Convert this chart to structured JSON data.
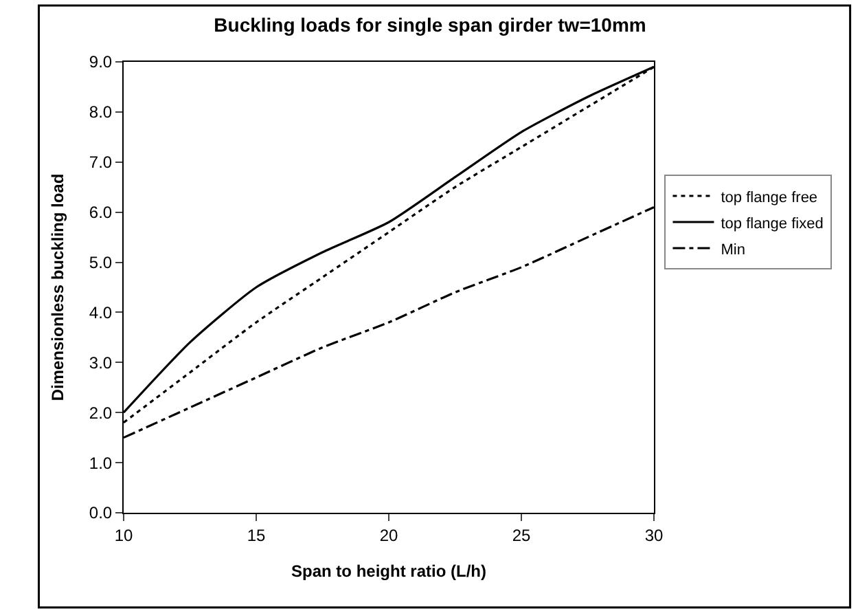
{
  "chart_data": {
    "type": "line",
    "title": "Buckling loads for single span girder tw=10mm",
    "xlabel": "Span to height ratio (L/h)",
    "ylabel": "Dimensionless buckling load",
    "x": [
      10,
      12.5,
      15,
      17.5,
      20,
      22.5,
      25,
      27.5,
      30
    ],
    "series": [
      {
        "name": "top flange free",
        "color": "#000000",
        "line_style": "dotted",
        "values": [
          1.8,
          2.8,
          3.8,
          4.7,
          5.6,
          6.5,
          7.3,
          8.1,
          8.9
        ]
      },
      {
        "name": "top flange fixed",
        "color": "#000000",
        "line_style": "solid",
        "values": [
          2.0,
          3.4,
          4.5,
          5.2,
          5.8,
          6.7,
          7.6,
          8.3,
          8.9
        ]
      },
      {
        "name": "Min",
        "color": "#000000",
        "line_style": "dashdot",
        "values": [
          1.5,
          2.1,
          2.7,
          3.3,
          3.8,
          4.4,
          4.9,
          5.5,
          6.1
        ]
      }
    ],
    "xlim": [
      10,
      30
    ],
    "xticks": [
      10,
      15,
      20,
      25,
      30
    ],
    "ylim": [
      0,
      9
    ],
    "yticks": [
      {
        "value": 0,
        "label": "0.0"
      },
      {
        "value": 1,
        "label": "1.0"
      },
      {
        "value": 2,
        "label": "2.0"
      },
      {
        "value": 3,
        "label": "3.0"
      },
      {
        "value": 4,
        "label": "4.0"
      },
      {
        "value": 5,
        "label": "5.0"
      },
      {
        "value": 6,
        "label": "6.0"
      },
      {
        "value": 7,
        "label": "7.0"
      },
      {
        "value": 8,
        "label": "8.0"
      },
      {
        "value": 9,
        "label": "9.0"
      }
    ],
    "legend": "right",
    "marker": "none"
  }
}
